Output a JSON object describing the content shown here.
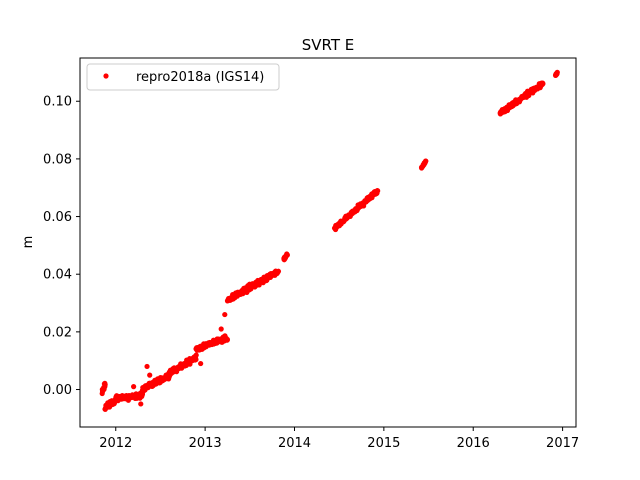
{
  "chart_data": {
    "type": "scatter",
    "title": "SVRT E",
    "xlabel": "",
    "ylabel": "m",
    "xlim": [
      2011.6,
      2017.15
    ],
    "ylim": [
      -0.013,
      0.115
    ],
    "x_ticks": [
      "2012",
      "2013",
      "2014",
      "2015",
      "2016",
      "2017"
    ],
    "y_ticks": [
      "0.00",
      "0.02",
      "0.04",
      "0.06",
      "0.08",
      "0.10"
    ],
    "grid": false,
    "legend": {
      "placement": "top-left"
    },
    "colors": {
      "series": "#ff0000"
    },
    "series": [
      {
        "name": "repro2018a (IGS14)",
        "marker": "dot",
        "segments": [
          {
            "x_start": 2011.85,
            "x_end": 2011.88,
            "y_start": -0.001,
            "y_end": 0.002,
            "n": 18,
            "noise": 0.0012
          },
          {
            "x_start": 2011.88,
            "x_end": 2012.0,
            "y_start": -0.006,
            "y_end": -0.004,
            "n": 35,
            "noise": 0.0012
          },
          {
            "x_start": 2012.0,
            "x_end": 2012.3,
            "y_start": -0.003,
            "y_end": -0.002,
            "n": 80,
            "noise": 0.0014
          },
          {
            "x_start": 2012.3,
            "x_end": 2012.6,
            "y_start": 0.0,
            "y_end": 0.005,
            "n": 80,
            "noise": 0.0016
          },
          {
            "x_start": 2012.6,
            "x_end": 2012.9,
            "y_start": 0.006,
            "y_end": 0.011,
            "n": 80,
            "noise": 0.0014
          },
          {
            "x_start": 2012.9,
            "x_end": 2013.25,
            "y_start": 0.014,
            "y_end": 0.018,
            "n": 90,
            "noise": 0.0014
          },
          {
            "x_start": 2013.25,
            "x_end": 2013.82,
            "y_start": 0.031,
            "y_end": 0.041,
            "n": 140,
            "noise": 0.0014
          },
          {
            "x_start": 2013.88,
            "x_end": 2013.92,
            "y_start": 0.045,
            "y_end": 0.047,
            "n": 14,
            "noise": 0.0008
          },
          {
            "x_start": 2014.45,
            "x_end": 2014.93,
            "y_start": 0.056,
            "y_end": 0.069,
            "n": 120,
            "noise": 0.0012
          },
          {
            "x_start": 2015.42,
            "x_end": 2015.47,
            "y_start": 0.077,
            "y_end": 0.079,
            "n": 14,
            "noise": 0.0008
          },
          {
            "x_start": 2016.3,
            "x_end": 2016.78,
            "y_start": 0.096,
            "y_end": 0.106,
            "n": 130,
            "noise": 0.0012
          },
          {
            "x_start": 2016.92,
            "x_end": 2016.94,
            "y_start": 0.109,
            "y_end": 0.11,
            "n": 8,
            "noise": 0.0004
          }
        ],
        "outliers": [
          [
            2012.35,
            0.008
          ],
          [
            2012.45,
            0.002
          ],
          [
            2012.28,
            -0.005
          ],
          [
            2012.95,
            0.009
          ],
          [
            2013.18,
            0.021
          ],
          [
            2013.22,
            0.026
          ],
          [
            2012.38,
            0.005
          ],
          [
            2012.2,
            0.001
          ]
        ]
      }
    ]
  }
}
